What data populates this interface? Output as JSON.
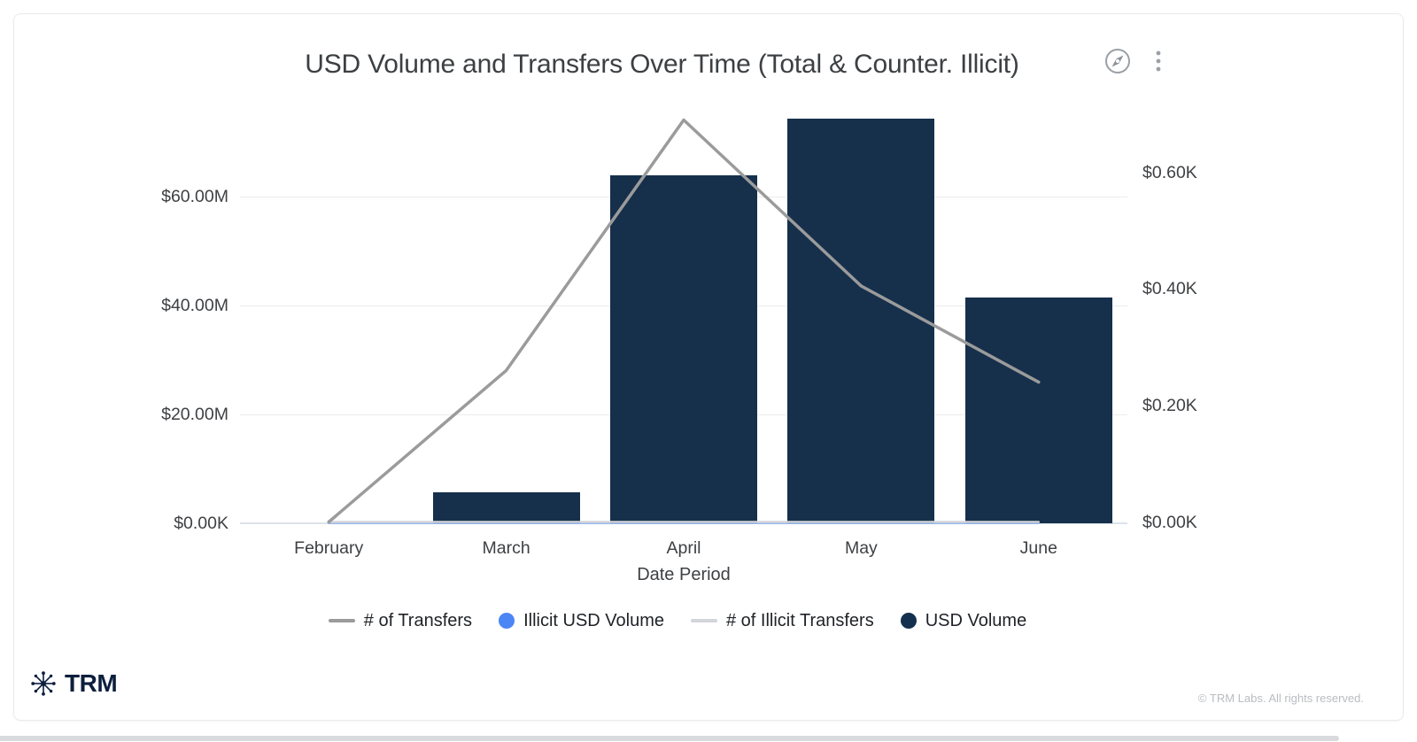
{
  "header": {
    "title": "USD Volume and Transfers Over Time (Total & Counter. Illicit)"
  },
  "chart_data": {
    "type": "combo",
    "title": "USD Volume and Transfers Over Time (Total & Counter. Illicit)",
    "xlabel": "Date Period",
    "categories": [
      "February",
      "March",
      "April",
      "May",
      "June"
    ],
    "series": [
      {
        "name": "USD Volume",
        "chart_type": "bar",
        "axis": "left",
        "color": "#16304C",
        "values": [
          0,
          5700000,
          63900000,
          74300000,
          41500000
        ]
      },
      {
        "name": "Illicit USD Volume",
        "chart_type": "line",
        "axis": "left",
        "color": "#4D87F5",
        "opacity": 0.5,
        "width": 2,
        "values": [
          0,
          0,
          0,
          0,
          0
        ]
      },
      {
        "name": "# of Illicit Transfers",
        "chart_type": "line",
        "axis": "right",
        "color": "#D3D6DA",
        "opacity": 1,
        "width": 2.5,
        "values": [
          0,
          0,
          0,
          0,
          0
        ]
      },
      {
        "name": "# of Transfers",
        "chart_type": "line",
        "axis": "right",
        "color": "#9B9B9B",
        "opacity": 1,
        "width": 3.5,
        "values": [
          0,
          260,
          690,
          405,
          240
        ]
      }
    ],
    "left_axis": {
      "tick_values": [
        0,
        20000000,
        40000000,
        60000000
      ],
      "tick_labels": [
        "$0.00K",
        "$20.00M",
        "$40.00M",
        "$60.00M"
      ],
      "max": 77000000,
      "grid": true
    },
    "right_axis": {
      "tick_values": [
        0,
        200,
        400,
        600
      ],
      "tick_labels": [
        "$0.00K",
        "$0.20K",
        "$0.40K",
        "$0.60K"
      ],
      "max": 720,
      "grid": false
    },
    "legend_position": "bottom"
  },
  "legend": {
    "items": [
      {
        "label": "# of Transfers",
        "marker": "line",
        "color": "#9B9B9B"
      },
      {
        "label": "Illicit USD Volume",
        "marker": "dot",
        "color": "#4C86F5"
      },
      {
        "label": "# of Illicit Transfers",
        "marker": "line",
        "color": "#D2D6DB"
      },
      {
        "label": "USD Volume",
        "marker": "dot",
        "color": "#14304E"
      }
    ]
  },
  "footer": {
    "brand": "TRM",
    "copyright": "© TRM Labs. All rights reserved."
  },
  "colors": {
    "bar_navy": "#16304C",
    "line_gray": "#9B9B9B",
    "illicit_blue": "#4D87F5",
    "illicit_gray": "#D3D6DA",
    "icon_gray": "#9aa0a6"
  }
}
